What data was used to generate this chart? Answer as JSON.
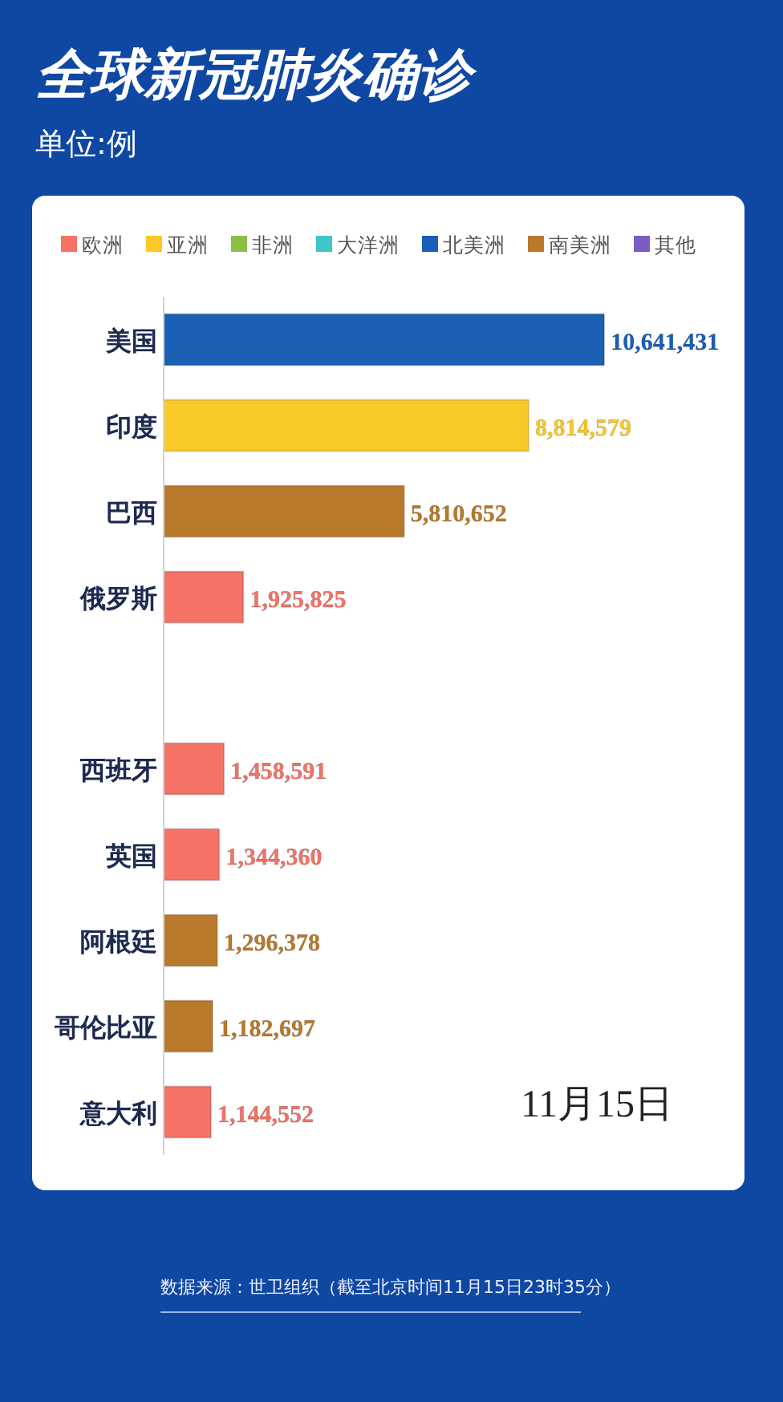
{
  "chart_data": {
    "type": "bar",
    "orientation": "horizontal",
    "title": "全球新冠肺炎确诊",
    "subtitle": "单位:例",
    "categories": [
      "美国",
      "印度",
      "巴西",
      "俄罗斯",
      null,
      "西班牙",
      "英国",
      "阿根廷",
      "哥伦比亚",
      "意大利"
    ],
    "series": [
      {
        "name": "欧洲",
        "color": "#f47266",
        "values": [
          null,
          null,
          null,
          1925825,
          null,
          1458591,
          1344360,
          null,
          null,
          1144552
        ],
        "value_labels": [
          null,
          null,
          null,
          "1,925,825",
          null,
          "1,458,591",
          "1,344,360",
          null,
          null,
          "1,144,552"
        ]
      },
      {
        "name": "亚洲",
        "color": "#f9c928",
        "values": [
          null,
          8814579,
          null,
          null,
          null,
          null,
          null,
          null,
          null,
          null
        ],
        "value_labels": [
          null,
          "8,814,579",
          null,
          null,
          null,
          null,
          null,
          null,
          null,
          null
        ]
      },
      {
        "name": "非洲",
        "color": "#8cbf45",
        "values": [
          null,
          null,
          null,
          null,
          null,
          null,
          null,
          null,
          null,
          null
        ]
      },
      {
        "name": "大洋洲",
        "color": "#3ec6c8",
        "values": [
          null,
          null,
          null,
          null,
          null,
          null,
          null,
          null,
          null,
          null
        ]
      },
      {
        "name": "北美洲",
        "color": "#1a5fb4",
        "values": [
          10641431,
          null,
          null,
          null,
          null,
          null,
          null,
          null,
          null,
          null
        ],
        "value_labels": [
          "10,641,431",
          null,
          null,
          null,
          null,
          null,
          null,
          null,
          null,
          null
        ]
      },
      {
        "name": "南美洲",
        "color": "#b87a2a",
        "values": [
          null,
          null,
          5810652,
          null,
          null,
          null,
          null,
          1296378,
          1182697,
          null
        ],
        "value_labels": [
          null,
          null,
          "5,810,652",
          null,
          null,
          null,
          null,
          "1,296,378",
          "1,182,697",
          null
        ]
      },
      {
        "name": "其他",
        "color": "#7b5cc4",
        "values": [
          null,
          null,
          null,
          null,
          null,
          null,
          null,
          null,
          null,
          null
        ]
      }
    ],
    "tick_labels": "y",
    "legend": "top",
    "annotations": [
      "11月15日",
      "数据来源：世卫组织（截至北京时间11月15日23时35分）"
    ]
  }
}
